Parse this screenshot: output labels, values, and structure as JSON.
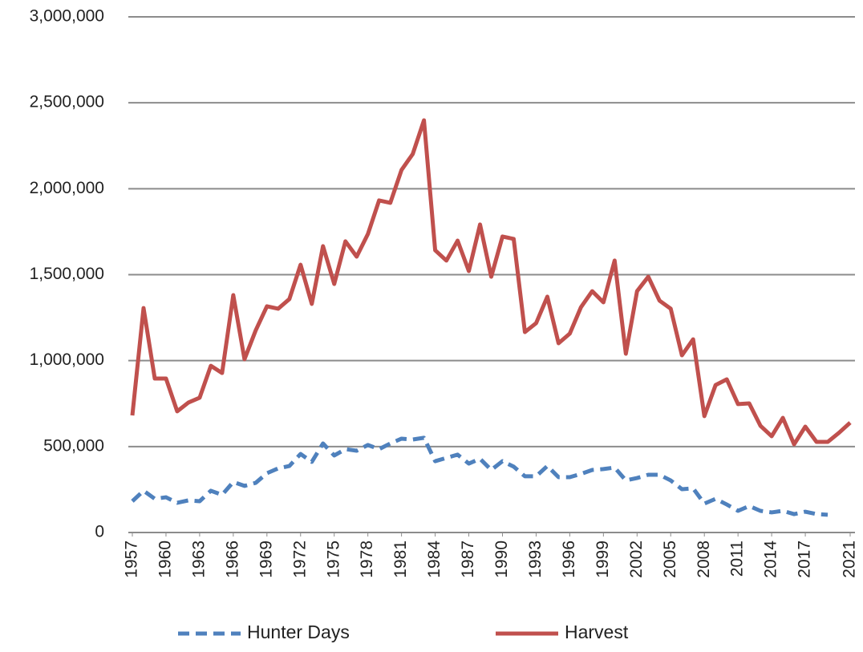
{
  "chart_data": {
    "type": "line",
    "x": [
      1957,
      1958,
      1959,
      1960,
      1961,
      1962,
      1963,
      1964,
      1965,
      1966,
      1967,
      1968,
      1969,
      1970,
      1971,
      1972,
      1973,
      1974,
      1975,
      1976,
      1977,
      1978,
      1979,
      1980,
      1981,
      1982,
      1983,
      1984,
      1985,
      1986,
      1987,
      1988,
      1989,
      1990,
      1991,
      1992,
      1993,
      1994,
      1995,
      1996,
      1997,
      1998,
      1999,
      2000,
      2001,
      2002,
      2003,
      2004,
      2005,
      2006,
      2007,
      2008,
      2009,
      2010,
      2011,
      2012,
      2013,
      2014,
      2015,
      2016,
      2017,
      2018,
      2019,
      2020,
      2021
    ],
    "series": [
      {
        "name": "Hunter Days",
        "color": "#4f81bd",
        "dashed": true,
        "values": [
          182000,
          243000,
          196000,
          205000,
          173000,
          187000,
          182000,
          243000,
          219000,
          294000,
          271000,
          289000,
          345000,
          373000,
          387000,
          457000,
          411000,
          518000,
          448000,
          485000,
          476000,
          509000,
          485000,
          518000,
          546000,
          541000,
          551000,
          415000,
          434000,
          453000,
          401000,
          429000,
          364000,
          415000,
          383000,
          327000,
          327000,
          387000,
          322000,
          322000,
          341000,
          364000,
          369000,
          378000,
          303000,
          317000,
          336000,
          336000,
          303000,
          252000,
          257000,
          168000,
          196000,
          163000,
          126000,
          154000,
          126000,
          117000,
          126000,
          107000,
          121000,
          107000,
          103000,
          null,
          null
        ]
      },
      {
        "name": "Harvest",
        "color": "#c0504d",
        "dashed": false,
        "values": [
          681000,
          1306000,
          896000,
          896000,
          705000,
          756000,
          784000,
          970000,
          928000,
          1381000,
          1008000,
          1176000,
          1316000,
          1302000,
          1358000,
          1558000,
          1330000,
          1666000,
          1446000,
          1694000,
          1605000,
          1736000,
          1932000,
          1918000,
          2109000,
          2202000,
          2398000,
          1642000,
          1582000,
          1698000,
          1521000,
          1792000,
          1488000,
          1722000,
          1708000,
          1166000,
          1218000,
          1372000,
          1101000,
          1157000,
          1311000,
          1404000,
          1339000,
          1582000,
          1040000,
          1404000,
          1488000,
          1349000,
          1302000,
          1031000,
          1124000,
          677000,
          858000,
          891000,
          747000,
          751000,
          621000,
          560000,
          667000,
          513000,
          616000,
          527000,
          527000,
          580000,
          639000
        ]
      }
    ],
    "xlim": [
      1957,
      2021
    ],
    "xticks": [
      1957,
      1960,
      1963,
      1966,
      1969,
      1972,
      1975,
      1978,
      1981,
      1984,
      1987,
      1990,
      1993,
      1996,
      1999,
      2002,
      2005,
      2008,
      2011,
      2014,
      2017,
      2021
    ],
    "ylim": [
      0,
      3000000
    ],
    "yticks": [
      0,
      {
        "value": 500000,
        "label": "500,000"
      },
      {
        "value": 1000000,
        "label": "1,000,000"
      },
      {
        "value": 1500000,
        "label": "1,500,000"
      },
      {
        "value": 2000000,
        "label": "2,000,000"
      },
      {
        "value": 2500000,
        "label": "2,500,000"
      },
      {
        "value": 3000000,
        "label": "3,000,000"
      }
    ],
    "grid": true,
    "legend": "bottom"
  }
}
